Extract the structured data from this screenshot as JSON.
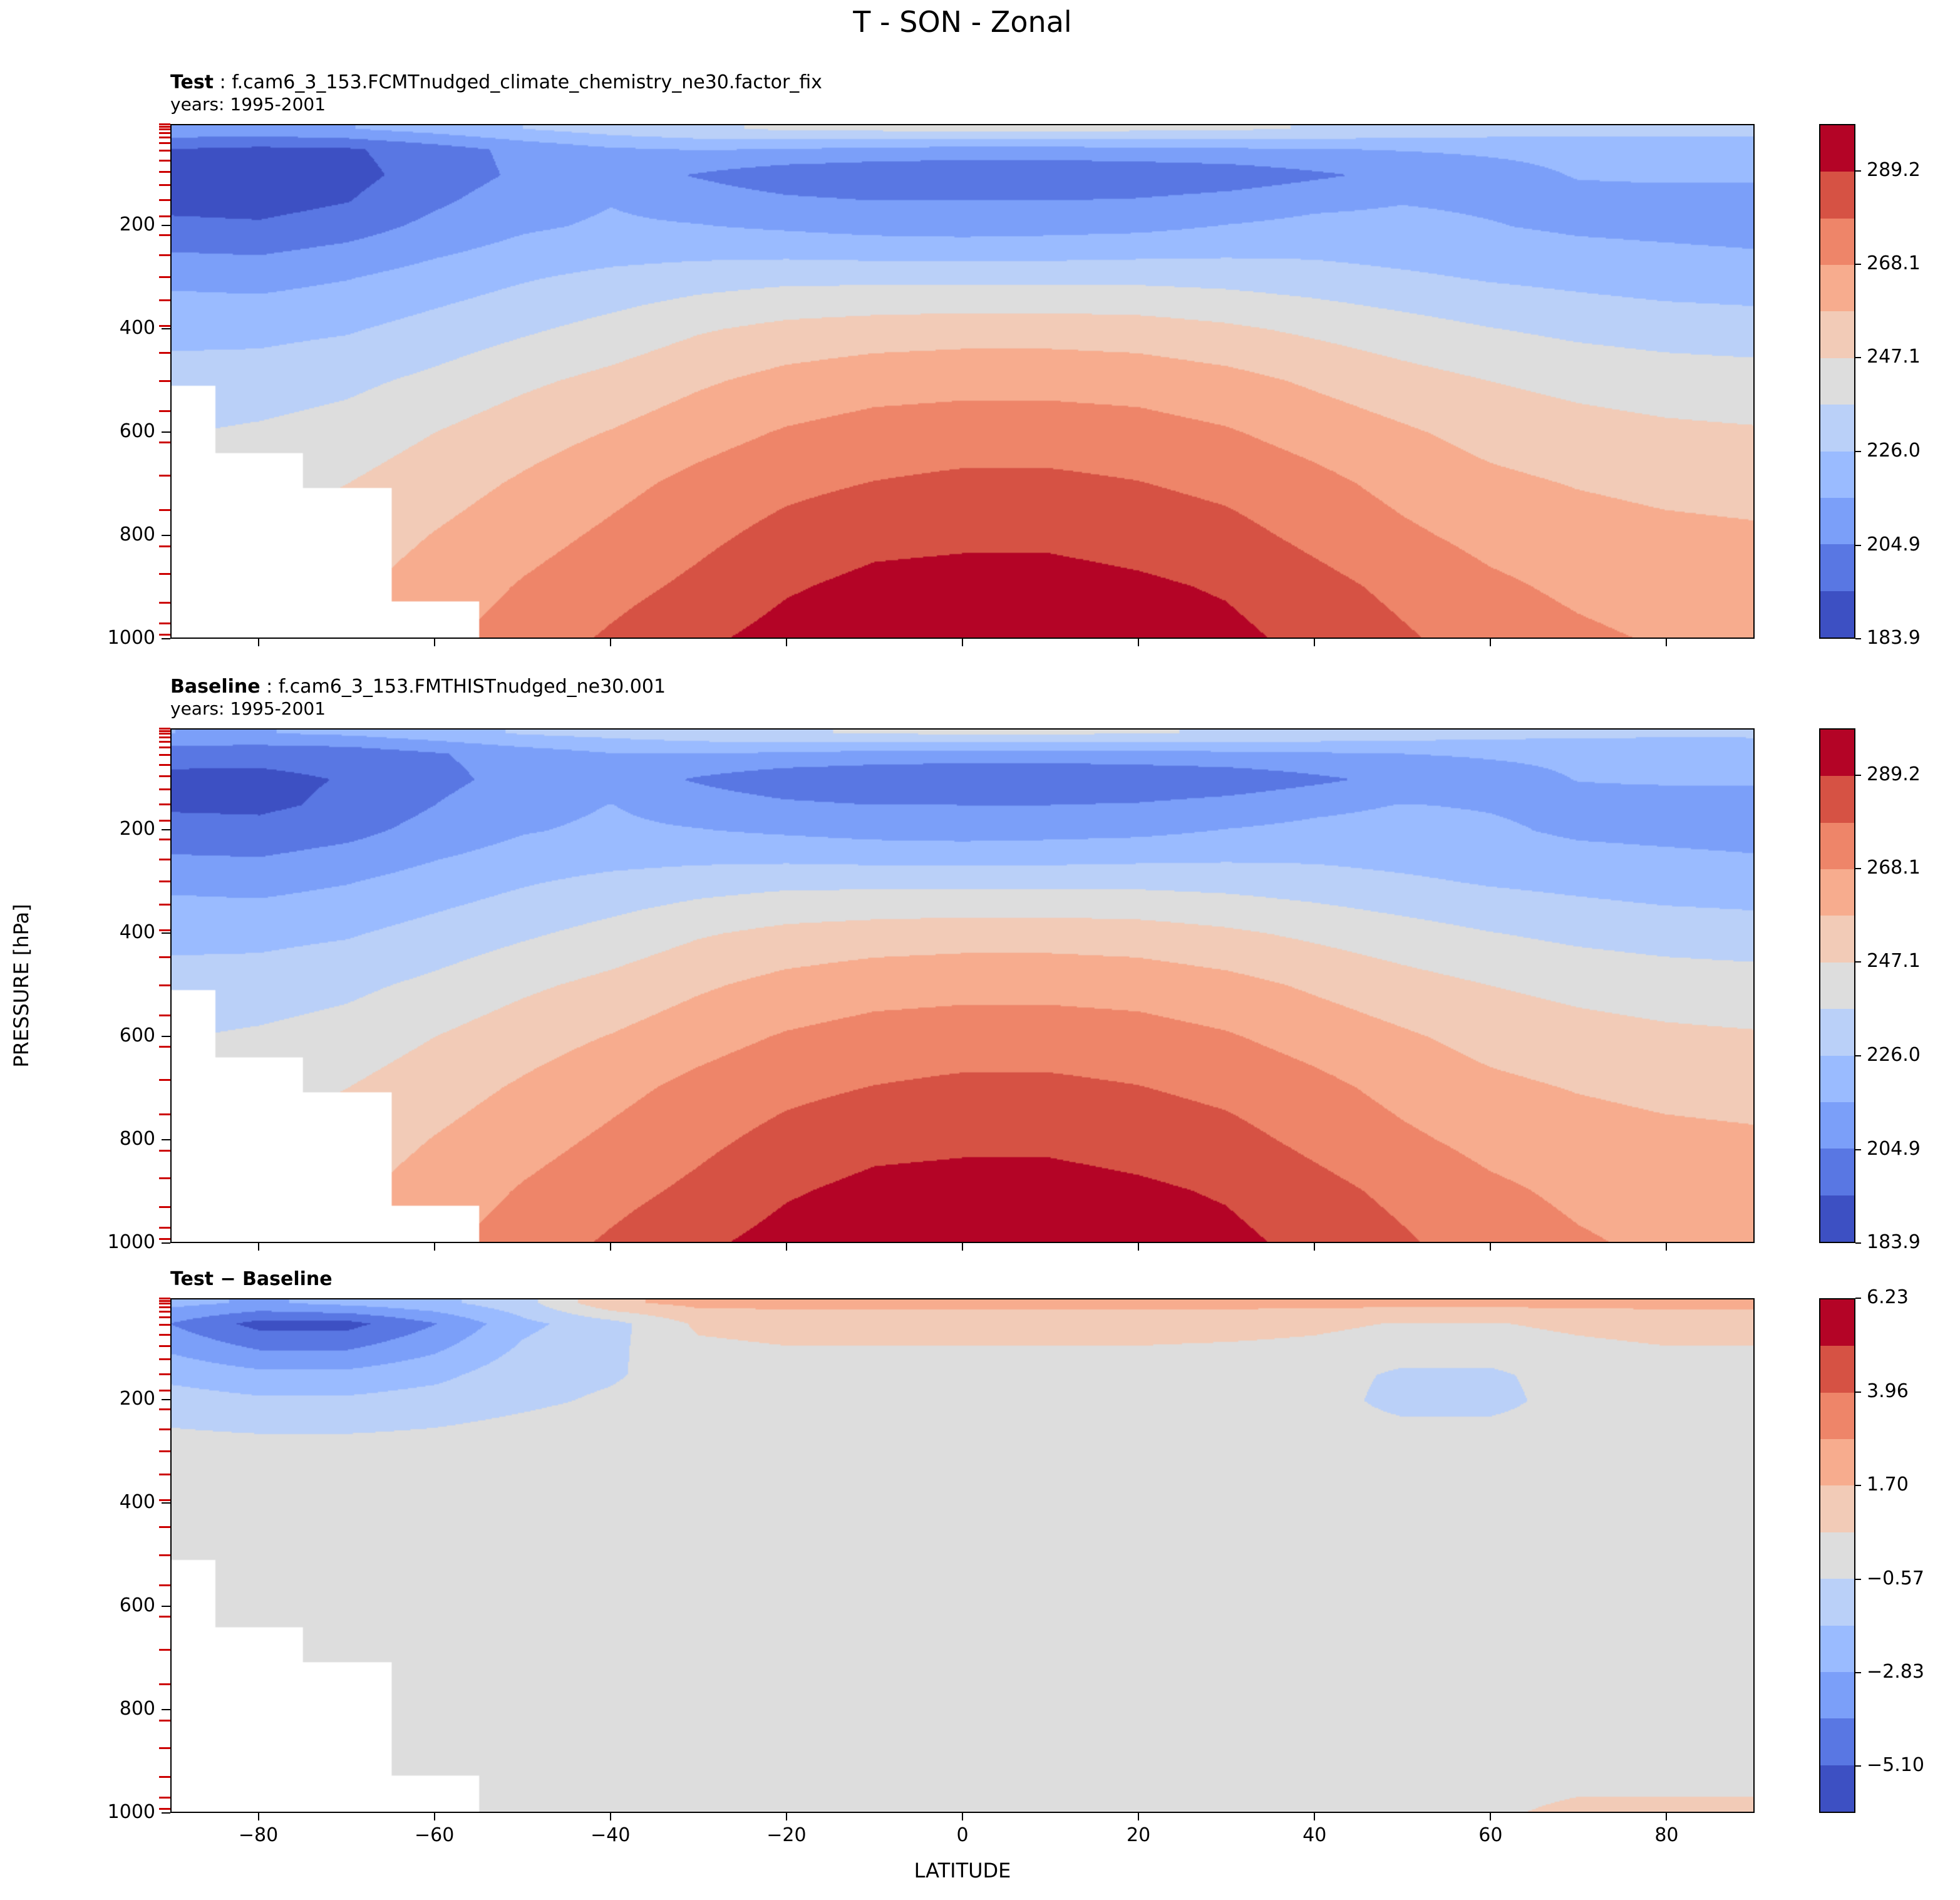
{
  "figure": {
    "title": "T - SON - Zonal"
  },
  "axes": {
    "lat_min": -90,
    "lat_max": 90,
    "p_top": 3,
    "p_bottom": 1000,
    "xlabel": "LATITUDE",
    "ylabel": "PRESSURE [hPa]",
    "x_ticks": [
      {
        "v": -80,
        "label": "−80"
      },
      {
        "v": -60,
        "label": "−60"
      },
      {
        "v": -40,
        "label": "−40"
      },
      {
        "v": -20,
        "label": "−20"
      },
      {
        "v": 0,
        "label": "0"
      },
      {
        "v": 20,
        "label": "20"
      },
      {
        "v": 40,
        "label": "40"
      },
      {
        "v": 60,
        "label": "60"
      },
      {
        "v": 80,
        "label": "80"
      }
    ],
    "y_ticks": [
      {
        "v": 200,
        "label": "200"
      },
      {
        "v": 400,
        "label": "400"
      },
      {
        "v": 600,
        "label": "600"
      },
      {
        "v": 800,
        "label": "800"
      },
      {
        "v": 1000,
        "label": "1000"
      }
    ],
    "model_level_pressures": [
      4,
      8,
      13,
      20,
      29,
      40,
      55,
      74,
      96,
      121,
      150,
      182,
      218,
      257,
      299,
      345,
      394,
      446,
      501,
      559,
      620,
      684,
      751,
      821,
      875,
      930,
      970,
      992
    ],
    "model_tick_color": "#cc0000"
  },
  "chart_data": {
    "type": "heatmap",
    "title": "T - SON - Zonal",
    "xlabel": "LATITUDE",
    "ylabel": "PRESSURE [hPa]",
    "units": "K",
    "band_colors": [
      "#3d50c3",
      "#5977e3",
      "#7b9ff9",
      "#9abbff",
      "#bad0f8",
      "#dddddd",
      "#f2cbb7",
      "#f7ac8e",
      "#ee8569",
      "#d65244",
      "#b40426"
    ],
    "mask_color": "#ffffff",
    "x_lats": [
      -90,
      -80,
      -70,
      -60,
      -50,
      -40,
      -30,
      -20,
      -10,
      0,
      10,
      20,
      30,
      40,
      50,
      60,
      70,
      80,
      90
    ],
    "y_pressures": [
      10,
      50,
      100,
      150,
      200,
      250,
      300,
      400,
      500,
      600,
      700,
      800,
      900,
      1000
    ],
    "surface_pressure": [
      510,
      640,
      710,
      930,
      1010,
      1010,
      1010,
      1010,
      1010,
      1010,
      1010,
      1010,
      1010,
      1010,
      1010,
      1010,
      1010,
      1010,
      1010
    ],
    "panels": [
      {
        "name": "Test",
        "caption_bold": "Test",
        "caption_rest": " : f.cam6_3_153.FCMTnudged_climate_chemistry_ne30.factor_fix",
        "caption_line2": "years: 1995-2001",
        "levels": [
          183.9,
          194.43,
          204.95,
          215.48,
          226.01,
          236.53,
          247.06,
          257.59,
          268.11,
          278.64,
          289.17,
          299.7
        ],
        "colorbar_ticks": [
          {
            "v": 289.2,
            "label": "289.2"
          },
          {
            "v": 268.1,
            "label": "268.1"
          },
          {
            "v": 247.1,
            "label": "247.1"
          },
          {
            "v": 226.0,
            "label": "226.0"
          },
          {
            "v": 204.9,
            "label": "204.9"
          },
          {
            "v": 183.9,
            "label": "183.9"
          }
        ],
        "values": [
          [
            213,
            212,
            215,
            220,
            226,
            231,
            235,
            238,
            239,
            240,
            240,
            239,
            238,
            236,
            234,
            232,
            231,
            230,
            230
          ],
          [
            194,
            192,
            193,
            200,
            208,
            214,
            216,
            215,
            213,
            212,
            212,
            213,
            214,
            215,
            216,
            217,
            218,
            219,
            220
          ],
          [
            189,
            188,
            191,
            199,
            207,
            210,
            204,
            198,
            196,
            195,
            195,
            196,
            198,
            203,
            208,
            212,
            216,
            217,
            217
          ],
          [
            191,
            190,
            194,
            203,
            211,
            215,
            211,
            207,
            205,
            205,
            205,
            206,
            209,
            213,
            215,
            214,
            213,
            212,
            212
          ],
          [
            197,
            196,
            200,
            208,
            214,
            217,
            216,
            214,
            212,
            211,
            212,
            213,
            216,
            218,
            218,
            216,
            214,
            213,
            212
          ],
          [
            205,
            204,
            208,
            214,
            219,
            222,
            223,
            223,
            222,
            222,
            222,
            223,
            224,
            224,
            222,
            220,
            218,
            217,
            216
          ],
          [
            213,
            212,
            215,
            220,
            225,
            229,
            232,
            234,
            234,
            234,
            234,
            234,
            233,
            231,
            228,
            225,
            223,
            221,
            220
          ],
          [
            223,
            223,
            225,
            230,
            235,
            240,
            246,
            250,
            252,
            253,
            253,
            252,
            249,
            245,
            241,
            237,
            234,
            232,
            231
          ],
          [
            230,
            231,
            234,
            239,
            245,
            250,
            256,
            261,
            264,
            265,
            265,
            264,
            261,
            256,
            251,
            247,
            244,
            242,
            241
          ],
          [
            236,
            238,
            241,
            247,
            253,
            258,
            264,
            269,
            272,
            273,
            273,
            272,
            269,
            264,
            259,
            254,
            251,
            249,
            248
          ],
          [
            241,
            243,
            247,
            253,
            259,
            265,
            271,
            276,
            279,
            281,
            281,
            279,
            276,
            271,
            265,
            260,
            257,
            255,
            254
          ],
          [
            245,
            247,
            252,
            258,
            264,
            270,
            276,
            282,
            286,
            287,
            287,
            285,
            282,
            276,
            270,
            265,
            262,
            260,
            259
          ],
          [
            248,
            251,
            256,
            262,
            269,
            275,
            281,
            288,
            292,
            293,
            293,
            291,
            288,
            282,
            276,
            270,
            266,
            263,
            262
          ],
          [
            251,
            254,
            259,
            266,
            273,
            280,
            287,
            293,
            296,
            297,
            297,
            295,
            292,
            286,
            280,
            274,
            270,
            267,
            265
          ]
        ]
      },
      {
        "name": "Baseline",
        "caption_bold": "Baseline",
        "caption_rest": " : f.cam6_3_153.FMTHISTnudged_ne30.001",
        "caption_line2": "years: 1995-2001",
        "levels": [
          183.9,
          194.43,
          204.95,
          215.48,
          226.01,
          236.53,
          247.06,
          257.59,
          268.11,
          278.64,
          289.17,
          299.7
        ],
        "colorbar_ticks": [
          {
            "v": 289.2,
            "label": "289.2"
          },
          {
            "v": 268.1,
            "label": "268.1"
          },
          {
            "v": 247.1,
            "label": "247.1"
          },
          {
            "v": 226.0,
            "label": "226.0"
          },
          {
            "v": 204.9,
            "label": "204.9"
          },
          {
            "v": 183.9,
            "label": "183.9"
          }
        ],
        "values": [
          [
            215.5,
            215,
            217.5,
            222,
            227,
            229.5,
            233,
            236,
            237,
            238,
            238,
            237,
            236,
            234,
            232,
            230,
            229,
            228,
            228
          ],
          [
            198,
            197.5,
            198.5,
            204,
            210,
            215,
            215.2,
            214,
            212,
            211,
            211,
            212,
            213,
            214.2,
            215.5,
            216.5,
            217.2,
            218,
            219
          ],
          [
            192,
            192,
            195,
            202,
            208.5,
            210.8,
            203.7,
            197.5,
            195.5,
            194.5,
            194.5,
            195.5,
            197.6,
            202.7,
            208,
            212,
            215.7,
            216.5,
            216.5
          ],
          [
            193,
            192.5,
            196.5,
            205,
            212,
            215.7,
            211,
            207,
            205,
            205,
            205,
            206,
            209,
            213,
            215.8,
            214.8,
            213,
            212,
            212
          ],
          [
            198.2,
            197.5,
            201.5,
            209.2,
            214.8,
            217.4,
            216,
            214,
            212,
            211,
            212,
            213,
            216,
            218,
            219,
            217,
            214,
            213,
            212
          ],
          [
            205.6,
            204.8,
            208.8,
            214.6,
            219.3,
            222,
            223,
            223,
            222,
            222,
            222,
            223,
            224,
            224,
            222.3,
            220.3,
            218,
            217,
            216
          ],
          [
            213,
            212,
            215,
            220,
            225,
            229,
            232,
            234,
            234,
            234,
            234,
            234,
            233,
            231,
            228,
            225,
            223,
            221,
            220
          ],
          [
            223,
            223,
            225,
            230,
            235,
            240,
            246,
            250,
            252,
            253,
            253,
            252,
            249,
            245,
            241,
            237,
            234,
            232,
            231
          ],
          [
            230,
            231,
            234,
            239,
            245,
            250,
            256,
            261,
            264,
            265,
            265,
            264,
            261,
            256,
            251,
            247,
            244,
            242,
            241
          ],
          [
            236,
            238,
            241,
            247,
            253,
            258,
            264,
            269,
            272,
            273,
            273,
            272,
            269,
            264,
            259,
            254,
            251,
            249,
            248
          ],
          [
            241,
            243,
            247,
            253,
            259,
            265,
            271,
            276,
            279,
            281,
            281,
            279,
            276,
            271,
            265,
            260,
            257,
            255,
            254
          ],
          [
            245,
            247,
            252,
            258,
            264,
            270,
            276,
            282,
            286,
            287,
            287,
            285,
            282,
            276,
            270,
            265,
            262,
            260,
            259
          ],
          [
            248,
            251,
            256,
            262,
            269,
            275,
            281,
            288,
            292,
            293,
            293,
            291,
            288,
            282,
            276,
            270,
            266,
            263,
            262
          ],
          [
            251,
            254,
            259,
            266,
            273,
            280,
            287,
            293,
            296,
            297,
            297,
            295,
            292,
            286,
            280,
            273.6,
            269.2,
            266.2,
            264.2
          ]
        ]
      },
      {
        "name": "Test - Baseline",
        "caption_bold": "Test − Baseline",
        "caption_rest": "",
        "caption_line2": "",
        "levels": [
          -6.23,
          -5.1,
          -3.96,
          -2.83,
          -1.7,
          -0.57,
          0.57,
          1.7,
          2.83,
          3.96,
          5.1,
          6.23
        ],
        "colorbar_ticks": [
          {
            "v": 6.23,
            "label": "6.23"
          },
          {
            "v": 3.96,
            "label": "3.96"
          },
          {
            "v": 1.7,
            "label": "1.70"
          },
          {
            "v": -0.57,
            "label": "−0.57"
          },
          {
            "v": -2.83,
            "label": "−2.83"
          },
          {
            "v": -5.1,
            "label": "−5.10"
          }
        ],
        "values": [
          [
            -2.5,
            -3,
            -2.5,
            -2,
            -1,
            1.5,
            2,
            2,
            2,
            2,
            2,
            2,
            2,
            2,
            2,
            2,
            2,
            2,
            2
          ],
          [
            -4,
            -5.5,
            -5.5,
            -4,
            -2,
            -1,
            0.8,
            1,
            1,
            1,
            1,
            1,
            1,
            0.8,
            0.5,
            0.5,
            0.8,
            1,
            1
          ],
          [
            -3,
            -4,
            -4,
            -3,
            -1.5,
            -0.8,
            0.3,
            0.5,
            0.5,
            0.5,
            0.5,
            0.5,
            0.4,
            0.3,
            0,
            0,
            0.3,
            0.5,
            0.5
          ],
          [
            -2,
            -2.5,
            -2.5,
            -2,
            -1,
            -0.7,
            0,
            0,
            0,
            0,
            0,
            0,
            0,
            0,
            -0.8,
            -0.8,
            0,
            0,
            0
          ],
          [
            -1.2,
            -1.5,
            -1.5,
            -1.2,
            -0.8,
            -0.4,
            0,
            0,
            0,
            0,
            0,
            0,
            0,
            0,
            -1,
            -1,
            0,
            0,
            0
          ],
          [
            -0.6,
            -0.8,
            -0.8,
            -0.6,
            -0.3,
            0,
            0,
            0,
            0,
            0,
            0,
            0,
            0,
            0,
            -0.3,
            -0.3,
            0,
            0,
            0
          ],
          [
            0,
            0,
            0,
            0,
            0,
            0,
            0,
            0,
            0,
            0,
            0,
            0,
            0,
            0,
            0,
            0,
            0,
            0,
            0
          ],
          [
            0,
            0,
            0,
            0,
            0,
            0,
            0,
            0,
            0,
            0,
            0,
            0,
            0,
            0,
            0,
            0,
            0,
            0,
            0
          ],
          [
            0,
            0,
            0,
            0,
            0,
            0,
            0,
            0,
            0,
            0,
            0,
            0,
            0,
            0,
            0,
            0,
            0,
            0,
            0
          ],
          [
            0,
            0,
            0,
            0,
            0,
            0,
            0,
            0,
            0,
            0,
            0,
            0,
            0,
            0,
            0,
            0,
            0,
            0,
            0
          ],
          [
            0,
            0,
            0,
            0,
            0,
            0,
            0,
            0,
            0,
            0,
            0,
            0,
            0,
            0,
            0,
            0,
            0,
            0,
            0
          ],
          [
            0,
            0,
            0,
            0,
            0,
            0,
            0,
            0,
            0,
            0,
            0,
            0,
            0,
            0,
            0,
            0,
            0,
            0,
            0
          ],
          [
            0,
            0,
            0,
            0,
            0,
            0,
            0,
            0,
            0,
            0,
            0,
            0,
            0,
            0,
            0,
            0,
            0,
            0,
            0
          ],
          [
            0,
            0,
            0,
            0,
            0,
            0,
            0,
            0,
            0,
            0,
            0,
            0,
            0,
            0,
            0,
            0.4,
            0.8,
            0.8,
            0.8
          ]
        ]
      }
    ]
  }
}
